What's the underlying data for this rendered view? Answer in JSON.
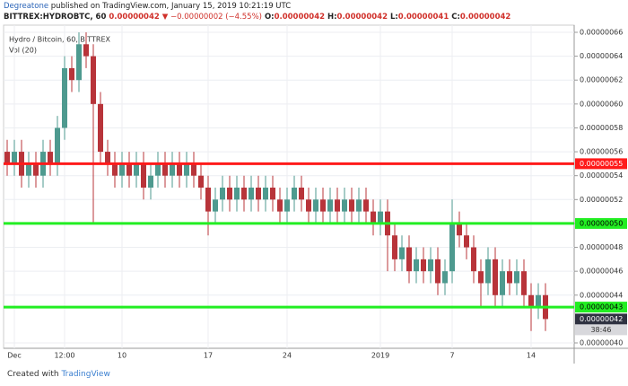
{
  "header": {
    "author": "Degreatone",
    "published": "published on TradingView.com, January 15, 2019 10:21:19 UTC",
    "symbol": "BITTREX:HYDROBTC, 60",
    "last": "0.00000042",
    "change": "▼ −0.00000002 (−4.55%)",
    "ohlc": [
      "O:",
      "0.00000042",
      "H:",
      "0.00000042",
      "L:",
      "0.00000041",
      "C:",
      "0.00000042"
    ]
  },
  "chart_data": {
    "type": "candlestick",
    "title": "Hydro / Bitcoin, 60, BITTREX",
    "subtitle": "Vol (20)",
    "categories": [
      null,
      "Dec",
      null,
      null,
      null,
      null,
      null,
      null,
      "12:00",
      null,
      null,
      null,
      null,
      null,
      null,
      null,
      "10",
      null,
      null,
      null,
      null,
      null,
      null,
      null,
      null,
      null,
      null,
      null,
      "17",
      null,
      null,
      null,
      null,
      null,
      null,
      null,
      null,
      null,
      null,
      "24",
      null,
      null,
      null,
      null,
      null,
      null,
      null,
      null,
      null,
      null,
      null,
      null,
      "2019",
      null,
      null,
      null,
      null,
      null,
      null,
      null,
      null,
      null,
      "7",
      null,
      null,
      null,
      null,
      null,
      null,
      null,
      null,
      null,
      null,
      "14",
      null,
      null
    ],
    "open": [
      5.6e-07,
      5.5e-07,
      5.6e-07,
      5.4e-07,
      5.5e-07,
      5.4e-07,
      5.6e-07,
      5.5e-07,
      5.8e-07,
      6.3e-07,
      6.2e-07,
      6.5e-07,
      6.4e-07,
      6e-07,
      5.6e-07,
      5.5e-07,
      5.4e-07,
      5.5e-07,
      5.4e-07,
      5.5e-07,
      5.3e-07,
      5.4e-07,
      5.5e-07,
      5.4e-07,
      5.5e-07,
      5.4e-07,
      5.5e-07,
      5.4e-07,
      5.3e-07,
      5.1e-07,
      5.2e-07,
      5.3e-07,
      5.2e-07,
      5.3e-07,
      5.2e-07,
      5.3e-07,
      5.2e-07,
      5.3e-07,
      5.2e-07,
      5.1e-07,
      5.2e-07,
      5.3e-07,
      5.2e-07,
      5.1e-07,
      5.2e-07,
      5.1e-07,
      5.2e-07,
      5.1e-07,
      5.2e-07,
      5.1e-07,
      5.2e-07,
      5.1e-07,
      5e-07,
      5.1e-07,
      4.9e-07,
      4.7e-07,
      4.8e-07,
      4.6e-07,
      4.7e-07,
      4.6e-07,
      4.7e-07,
      4.5e-07,
      4.6e-07,
      5e-07,
      4.9e-07,
      4.8e-07,
      4.6e-07,
      4.5e-07,
      4.7e-07,
      4.4e-07,
      4.6e-07,
      4.5e-07,
      4.6e-07,
      4.4e-07,
      4.3e-07,
      4.4e-07
    ],
    "high": [
      5.7e-07,
      5.7e-07,
      5.7e-07,
      5.6e-07,
      5.6e-07,
      5.7e-07,
      5.7e-07,
      5.9e-07,
      6.4e-07,
      6.4e-07,
      6.6e-07,
      6.6e-07,
      6.5e-07,
      6.1e-07,
      5.7e-07,
      5.6e-07,
      5.6e-07,
      5.6e-07,
      5.6e-07,
      5.6e-07,
      5.5e-07,
      5.6e-07,
      5.6e-07,
      5.6e-07,
      5.6e-07,
      5.6e-07,
      5.6e-07,
      5.5e-07,
      5.4e-07,
      5.3e-07,
      5.4e-07,
      5.4e-07,
      5.4e-07,
      5.4e-07,
      5.4e-07,
      5.4e-07,
      5.4e-07,
      5.4e-07,
      5.3e-07,
      5.3e-07,
      5.4e-07,
      5.4e-07,
      5.3e-07,
      5.3e-07,
      5.3e-07,
      5.3e-07,
      5.3e-07,
      5.3e-07,
      5.3e-07,
      5.3e-07,
      5.3e-07,
      5.2e-07,
      5.2e-07,
      5.2e-07,
      5e-07,
      4.9e-07,
      4.9e-07,
      4.8e-07,
      4.8e-07,
      4.8e-07,
      4.8e-07,
      4.7e-07,
      5.2e-07,
      5.1e-07,
      5e-07,
      4.9e-07,
      4.7e-07,
      4.8e-07,
      4.8e-07,
      4.7e-07,
      4.7e-07,
      4.7e-07,
      4.7e-07,
      4.5e-07,
      4.5e-07,
      4.5e-07
    ],
    "low": [
      5.4e-07,
      5.4e-07,
      5.3e-07,
      5.3e-07,
      5.3e-07,
      5.3e-07,
      5.4e-07,
      5.4e-07,
      5.7e-07,
      6.1e-07,
      6.1e-07,
      6.3e-07,
      5e-07,
      5.5e-07,
      5.4e-07,
      5.3e-07,
      5.3e-07,
      5.3e-07,
      5.3e-07,
      5.2e-07,
      5.2e-07,
      5.3e-07,
      5.3e-07,
      5.3e-07,
      5.3e-07,
      5.3e-07,
      5.3e-07,
      5.2e-07,
      4.9e-07,
      5e-07,
      5.1e-07,
      5.1e-07,
      5.1e-07,
      5.1e-07,
      5.1e-07,
      5.1e-07,
      5.1e-07,
      5.1e-07,
      5e-07,
      5e-07,
      5.1e-07,
      5.1e-07,
      5e-07,
      5e-07,
      5e-07,
      5e-07,
      5e-07,
      5e-07,
      5e-07,
      5e-07,
      5e-07,
      4.9e-07,
      4.9e-07,
      4.6e-07,
      4.6e-07,
      4.6e-07,
      4.5e-07,
      4.5e-07,
      4.5e-07,
      4.5e-07,
      4.4e-07,
      4.4e-07,
      4.5e-07,
      4.8e-07,
      4.7e-07,
      4.5e-07,
      4.3e-07,
      4.4e-07,
      4.3e-07,
      4.3e-07,
      4.4e-07,
      4.4e-07,
      4.3e-07,
      4.1e-07,
      4.2e-07,
      4.1e-07
    ],
    "close": [
      5.5e-07,
      5.6e-07,
      5.4e-07,
      5.5e-07,
      5.4e-07,
      5.6e-07,
      5.5e-07,
      5.8e-07,
      6.3e-07,
      6.2e-07,
      6.5e-07,
      6.4e-07,
      6e-07,
      5.6e-07,
      5.5e-07,
      5.4e-07,
      5.5e-07,
      5.4e-07,
      5.5e-07,
      5.3e-07,
      5.4e-07,
      5.5e-07,
      5.4e-07,
      5.5e-07,
      5.4e-07,
      5.5e-07,
      5.4e-07,
      5.3e-07,
      5.1e-07,
      5.2e-07,
      5.3e-07,
      5.2e-07,
      5.3e-07,
      5.2e-07,
      5.3e-07,
      5.2e-07,
      5.3e-07,
      5.2e-07,
      5.1e-07,
      5.2e-07,
      5.3e-07,
      5.2e-07,
      5.1e-07,
      5.2e-07,
      5.1e-07,
      5.2e-07,
      5.1e-07,
      5.2e-07,
      5.1e-07,
      5.2e-07,
      5.1e-07,
      5e-07,
      5.1e-07,
      4.9e-07,
      4.7e-07,
      4.8e-07,
      4.6e-07,
      4.7e-07,
      4.6e-07,
      4.7e-07,
      4.5e-07,
      4.6e-07,
      5e-07,
      4.9e-07,
      4.8e-07,
      4.6e-07,
      4.5e-07,
      4.7e-07,
      4.4e-07,
      4.6e-07,
      4.5e-07,
      4.6e-07,
      4.4e-07,
      4.3e-07,
      4.4e-07,
      4.2e-07
    ],
    "up_color": "#4e9a8f",
    "down_color": "#b8343a",
    "ylim": [
      3.955e-07,
      6.66e-07
    ],
    "yticks": [
      {
        "value": 4e-07,
        "label": "0.00000040"
      },
      {
        "value": 4.4e-07,
        "label": "0.00000044"
      },
      {
        "value": 4.6e-07,
        "label": "0.00000046"
      },
      {
        "value": 4.8e-07,
        "label": "0.00000048"
      },
      {
        "value": 5e-07,
        "label": "0.00000050"
      },
      {
        "value": 5.2e-07,
        "label": "0.00000052"
      },
      {
        "value": 5.4e-07,
        "label": "0.00000054"
      },
      {
        "value": 5.6e-07,
        "label": "0.00000056"
      },
      {
        "value": 5.8e-07,
        "label": "0.00000058"
      },
      {
        "value": 6e-07,
        "label": "0.00000060"
      },
      {
        "value": 6.2e-07,
        "label": "0.00000062"
      },
      {
        "value": 6.4e-07,
        "label": "0.00000064"
      },
      {
        "value": 6.6e-07,
        "label": "0.00000066"
      }
    ],
    "grid": true,
    "hlines": [
      {
        "value": 5.5e-07,
        "label": "0.00000055",
        "color": "#ff1a1a",
        "label_color": "#ffffff"
      },
      {
        "value": 5e-07,
        "label": "0.00000050",
        "color": "#22ee22",
        "label_color": "#000000"
      },
      {
        "value": 4.3e-07,
        "label": "0.00000043",
        "color": "#22ee22",
        "label_color": "#000000"
      }
    ],
    "last_price": {
      "value": 4.2e-07,
      "label": "0.00000042",
      "countdown": "38:46"
    }
  },
  "footer": {
    "text": "Created with",
    "brand": "TradingView"
  }
}
